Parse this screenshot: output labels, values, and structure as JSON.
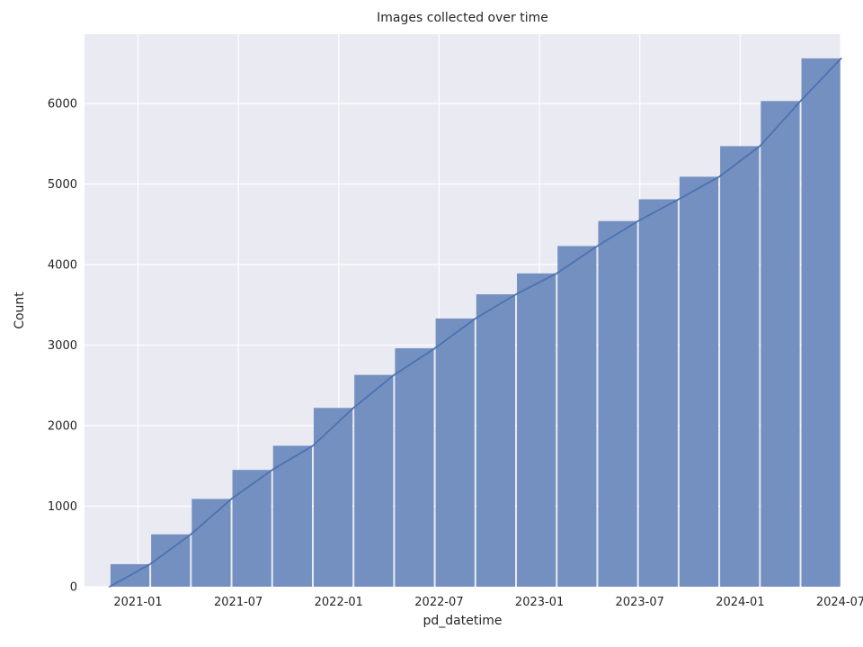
{
  "chart_data": {
    "type": "bar",
    "title": "Images collected over time",
    "xlabel": "pd_datetime",
    "ylabel": "Count",
    "legend": "none",
    "grid": "on",
    "x_axis": {
      "unit": "months relative to 2021-01",
      "min": -3.2,
      "max": 42,
      "ticks": [
        {
          "pos": 0,
          "label": "2021-01"
        },
        {
          "pos": 6,
          "label": "2021-07"
        },
        {
          "pos": 12,
          "label": "2022-01"
        },
        {
          "pos": 18,
          "label": "2022-07"
        },
        {
          "pos": 24,
          "label": "2023-01"
        },
        {
          "pos": 30,
          "label": "2023-07"
        },
        {
          "pos": 36,
          "label": "2024-01"
        },
        {
          "pos": 42,
          "label": "2024-07"
        }
      ]
    },
    "y_axis": {
      "min": 0,
      "max": 6860,
      "ticks": [
        0,
        1000,
        2000,
        3000,
        4000,
        5000,
        6000
      ]
    },
    "bins": {
      "origin": "2021-01",
      "start_offset_months": -1.7,
      "width_months": 2.43,
      "count": 18
    },
    "series": [
      {
        "name": "cumulative-image-count-bars",
        "type": "bar",
        "values": [
          280,
          650,
          1090,
          1450,
          1750,
          2220,
          2630,
          2960,
          3330,
          3630,
          3890,
          4230,
          4540,
          4810,
          5090,
          5470,
          6030,
          6560
        ]
      },
      {
        "name": "cumulative-count-line",
        "type": "line",
        "follows_bar_tops": true,
        "start_value": 0,
        "end_value": 6560
      }
    ],
    "colors": {
      "figure_bg": "#ffffff",
      "axes_bg": "#eaeaf2",
      "grid": "#ffffff",
      "bar_fill": "#7390c1",
      "line": "#4c72b0",
      "text": "#262626"
    }
  }
}
